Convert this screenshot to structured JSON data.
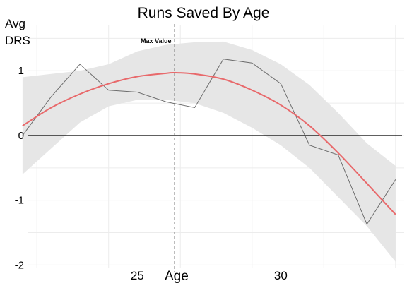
{
  "chart_data": {
    "type": "line",
    "title": "Runs Saved By Age",
    "xlabel": "Age",
    "ylabel_lines": [
      "Avg",
      "DRS"
    ],
    "annotation": "Max Value",
    "max_value_x": 26.3,
    "xlim": [
      21.2,
      34.3
    ],
    "ylim": [
      -2.05,
      1.7
    ],
    "x_ticks": [
      25,
      30
    ],
    "y_ticks": [
      -2,
      -1,
      0,
      1
    ],
    "grid": true,
    "colors": {
      "actual": "#6e6e6e",
      "fit": "#e8696b",
      "band": "#e6e6e6",
      "zero_line": "#000000",
      "max_line": "#555555",
      "grid": "#ececec"
    },
    "series": [
      {
        "x": [
          21,
          22,
          23,
          24,
          25,
          26,
          27,
          28,
          29,
          30,
          31,
          32,
          33,
          34
        ],
        "y": [
          0.0,
          0.6,
          1.1,
          0.7,
          0.67,
          0.52,
          0.43,
          1.18,
          1.12,
          0.8,
          -0.15,
          -0.3,
          -1.37,
          -0.68
        ]
      }
    ],
    "fit": {
      "x": [
        21,
        22,
        23,
        24,
        25,
        26,
        26.3,
        27,
        28,
        29,
        30,
        31,
        32,
        33,
        34
      ],
      "y": [
        0.15,
        0.43,
        0.64,
        0.8,
        0.91,
        0.96,
        0.97,
        0.95,
        0.87,
        0.7,
        0.47,
        0.15,
        -0.27,
        -0.74,
        -1.22
      ]
    },
    "confidence_band": {
      "x": [
        21,
        22,
        23,
        24,
        25,
        26,
        27,
        28,
        29,
        30,
        31,
        32,
        33,
        34
      ],
      "upper": [
        0.9,
        0.95,
        1.0,
        1.1,
        1.3,
        1.4,
        1.44,
        1.45,
        1.32,
        1.1,
        0.78,
        0.35,
        -0.12,
        -0.47
      ],
      "lower": [
        -0.6,
        -0.2,
        0.2,
        0.45,
        0.55,
        0.55,
        0.5,
        0.35,
        0.12,
        -0.15,
        -0.5,
        -0.95,
        -1.4,
        -1.95
      ]
    }
  }
}
